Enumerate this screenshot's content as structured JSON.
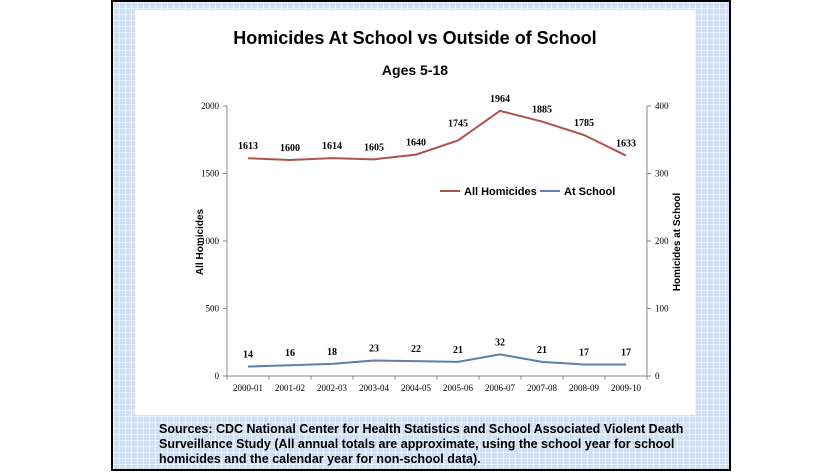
{
  "chart_data": {
    "type": "line",
    "title": "Homicides At School vs Outside of School",
    "subtitle": "Ages 5-18",
    "categories": [
      "2000-01",
      "2001-02",
      "2002-03",
      "2003-04",
      "2004-05",
      "2005-06",
      "2006-07",
      "2007-08",
      "2008-09",
      "2009-10"
    ],
    "series": [
      {
        "name": "All Homicides",
        "axis": "left",
        "color": "#b0504b",
        "values": [
          1613,
          1600,
          1614,
          1605,
          1640,
          1745,
          1964,
          1885,
          1785,
          1633
        ]
      },
      {
        "name": "At School",
        "axis": "right",
        "color": "#5b7fae",
        "values": [
          14,
          16,
          18,
          23,
          22,
          21,
          32,
          21,
          17,
          17
        ]
      }
    ],
    "ylabel": "All Homicides",
    "ylabel_right": "Homicides at School",
    "ylim": [
      0,
      2000
    ],
    "ylim_right": [
      0,
      400
    ],
    "yticks": [
      0,
      500,
      1000,
      1500,
      2000
    ],
    "yticks_right": [
      0,
      100,
      200,
      300,
      400
    ],
    "legend": "center-right"
  },
  "sources": "Sources: CDC National Center for Health Statistics and School Associated Violent Death Surveillance Study (All annual totals are approximate, using the school year for school homicides and the calendar year for non-school data)."
}
